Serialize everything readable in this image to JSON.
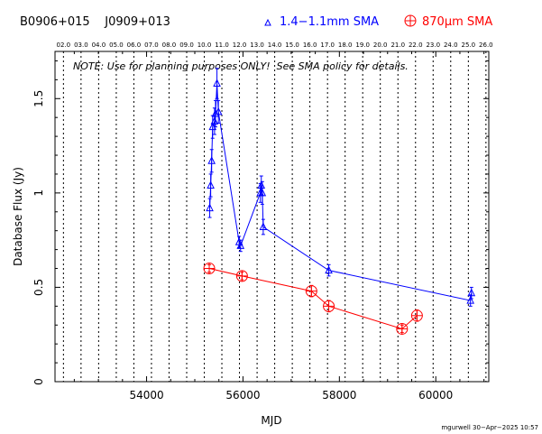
{
  "header": {
    "source_names": "B0906+015    J0909+013",
    "legend_blue": "1.4−1.1mm SMA",
    "legend_red": "870μm SMA"
  },
  "note": "NOTE: Use for planning purposes ONLY!  See SMA policy for details.",
  "footer": "mgurwell 30−Apr−2025 10:57",
  "colors": {
    "blue": "#0000ff",
    "red": "#ff0000",
    "axis": "#000000"
  },
  "chart_data": {
    "type": "scatter",
    "xlabel": "MJD",
    "ylabel": "Database Flux (Jy)",
    "xlim": [
      52100,
      61100
    ],
    "ylim": [
      0,
      1.75
    ],
    "x_ticks": [
      54000,
      56000,
      58000,
      60000
    ],
    "y_ticks": [
      0,
      0.5,
      1,
      1.5
    ],
    "y_tick_labels": [
      "0",
      "0.5",
      "1",
      "1.5"
    ],
    "top_axis": {
      "labels": [
        "02.0",
        "03.0",
        "04.0",
        "05.0",
        "06.0",
        "07.0",
        "08.0",
        "09.0",
        "10.0",
        "11.0",
        "12.0",
        "13.0",
        "14.0",
        "15.0",
        "16.0",
        "17.0",
        "18.0",
        "19.0",
        "20.0",
        "21.0",
        "22.0",
        "23.0",
        "24.0",
        "25.0",
        "26.0"
      ],
      "mjd": [
        52275,
        52640,
        53005,
        53371,
        53736,
        54101,
        54466,
        54832,
        55197,
        55562,
        55927,
        56293,
        56658,
        57023,
        57388,
        57754,
        58119,
        58484,
        58849,
        59215,
        59580,
        59945,
        60310,
        60676,
        61041
      ]
    },
    "series": [
      {
        "name": "1.4−1.1mm SMA",
        "color": "#0000ff",
        "marker": "triangle",
        "x": [
          55310,
          55330,
          55350,
          55370,
          55410,
          55430,
          55460,
          55490,
          55920,
          55950,
          56360,
          56380,
          56400,
          56420,
          57780,
          60720,
          60740
        ],
        "y": [
          0.92,
          1.04,
          1.17,
          1.35,
          1.38,
          1.42,
          1.58,
          1.43,
          0.74,
          0.72,
          1.0,
          1.04,
          1.0,
          0.82,
          0.59,
          0.43,
          0.47
        ],
        "err": [
          0.05,
          0.06,
          0.06,
          0.06,
          0.07,
          0.07,
          0.08,
          0.06,
          0.03,
          0.03,
          0.05,
          0.05,
          0.06,
          0.04,
          0.03,
          0.03,
          0.03
        ]
      },
      {
        "name": "870μm SMA",
        "color": "#ff0000",
        "marker": "circle-plus",
        "x": [
          55300,
          55980,
          57420,
          57780,
          59300,
          59610
        ],
        "y": [
          0.6,
          0.56,
          0.48,
          0.4,
          0.28,
          0.35
        ],
        "err": [
          0.02,
          0.02,
          0.03,
          0.03,
          0.02,
          0.03
        ]
      }
    ]
  }
}
